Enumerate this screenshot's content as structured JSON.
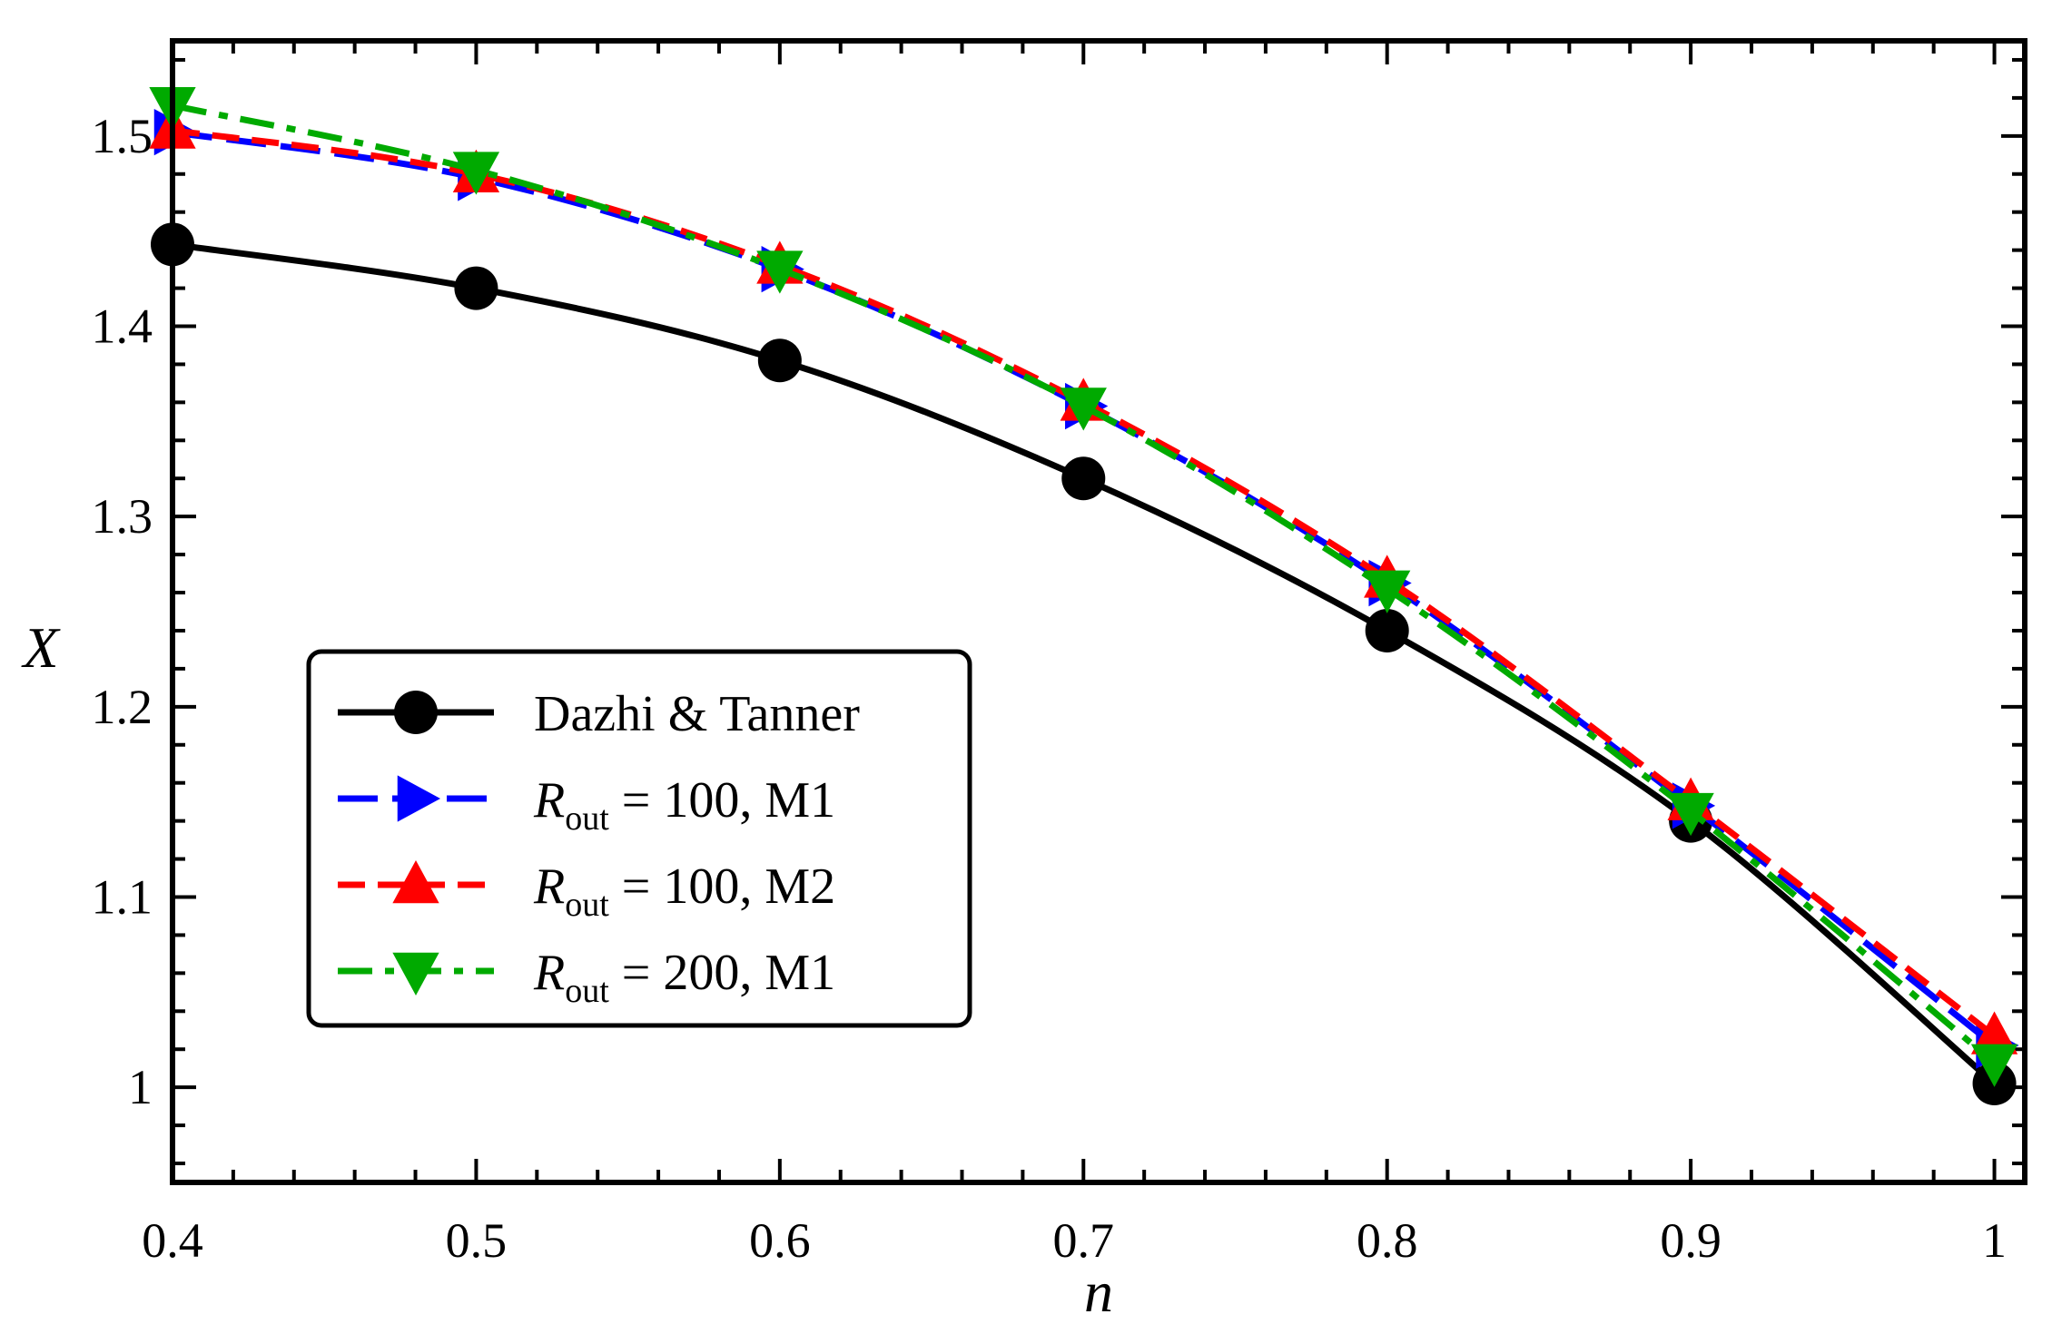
{
  "chart_data": {
    "type": "line",
    "title": "",
    "xlabel": "n",
    "ylabel": "X",
    "xlim": [
      0.4,
      1.01
    ],
    "ylim": [
      0.95,
      1.55
    ],
    "xticks": [
      0.4,
      0.5,
      0.6,
      0.7,
      0.8,
      0.9,
      1.0
    ],
    "xtick_labels": [
      "0.4",
      "0.5",
      "0.6",
      "0.7",
      "0.8",
      "0.9",
      "1"
    ],
    "yticks": [
      1.0,
      1.1,
      1.2,
      1.3,
      1.4,
      1.5
    ],
    "ytick_labels": [
      "1",
      "1.1",
      "1.2",
      "1.3",
      "1.4",
      "1.5"
    ],
    "legend_position": "lower-left",
    "series": [
      {
        "name": "Dazhi & Tanner",
        "legend_prefix": "",
        "legend_sub": "",
        "legend_suffix": "Dazhi & Tanner",
        "color": "#000000",
        "dash": "solid",
        "marker": "circle",
        "x": [
          0.4,
          0.5,
          0.6,
          0.7,
          0.8,
          0.9,
          1.0
        ],
        "y": [
          1.443,
          1.42,
          1.382,
          1.32,
          1.24,
          1.14,
          1.002
        ]
      },
      {
        "name": "R_out = 100, M1",
        "legend_prefix": "R",
        "legend_sub": "out",
        "legend_suffix": " = 100, M1",
        "color": "#0000ff",
        "dash": "longdash",
        "marker": "triangle-right",
        "x": [
          0.4,
          0.5,
          0.6,
          0.7,
          0.8,
          0.9,
          1.0
        ],
        "y": [
          1.502,
          1.478,
          1.43,
          1.358,
          1.265,
          1.148,
          1.022
        ]
      },
      {
        "name": "R_out = 100, M2",
        "legend_prefix": "R",
        "legend_sub": "out",
        "legend_suffix": " = 100, M2",
        "color": "#ff0000",
        "dash": "dash",
        "marker": "triangle-up",
        "x": [
          0.4,
          0.5,
          0.6,
          0.7,
          0.8,
          0.9,
          1.0
        ],
        "y": [
          1.503,
          1.48,
          1.432,
          1.36,
          1.267,
          1.15,
          1.027
        ]
      },
      {
        "name": "R_out = 200, M1",
        "legend_prefix": "R",
        "legend_sub": "out",
        "legend_suffix": " = 200, M1",
        "color": "#00aa00",
        "dash": "dashdot",
        "marker": "triangle-down",
        "x": [
          0.4,
          0.5,
          0.6,
          0.7,
          0.8,
          0.9,
          1.0
        ],
        "y": [
          1.516,
          1.482,
          1.43,
          1.358,
          1.262,
          1.145,
          1.013
        ]
      }
    ]
  }
}
